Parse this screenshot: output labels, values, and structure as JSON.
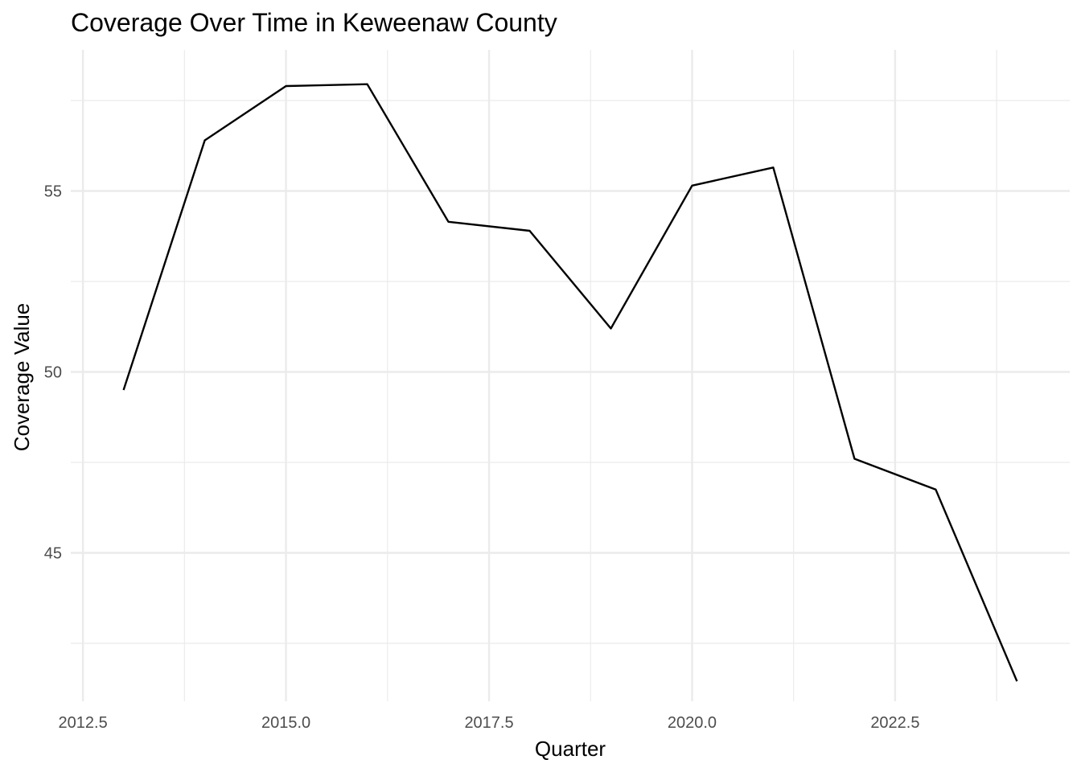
{
  "chart_data": {
    "type": "line",
    "title": "Coverage Over Time in Keweenaw County",
    "xlabel": "Quarter",
    "ylabel": "Coverage Value",
    "x": [
      2013,
      2014,
      2015,
      2016,
      2017,
      2018,
      2019,
      2020,
      2021,
      2022,
      2023,
      2024
    ],
    "series": [
      {
        "values": [
          49.5,
          56.4,
          57.9,
          57.95,
          54.15,
          53.9,
          51.2,
          55.15,
          55.65,
          47.6,
          46.75,
          41.45
        ]
      }
    ],
    "xlim": [
      2012.35,
      2024.65
    ],
    "ylim": [
      40.9,
      58.9
    ],
    "x_ticks": [
      2012.5,
      2015.0,
      2017.5,
      2020.0,
      2022.5
    ],
    "x_tick_labels": [
      "2012.5",
      "2015.0",
      "2017.5",
      "2020.0",
      "2022.5"
    ],
    "x_minor_ticks": [
      2013.75,
      2016.25,
      2018.75,
      2021.25,
      2023.75
    ],
    "y_ticks": [
      45,
      50,
      55
    ],
    "y_tick_labels": [
      "45",
      "50",
      "55"
    ],
    "y_minor_ticks": [
      42.5,
      47.5,
      52.5,
      57.5
    ],
    "grid": true,
    "legend": "none",
    "colors": {
      "line": "#000000",
      "grid": "#ebebeb",
      "tick_text": "#4d4d4d",
      "background": "#ffffff"
    }
  }
}
